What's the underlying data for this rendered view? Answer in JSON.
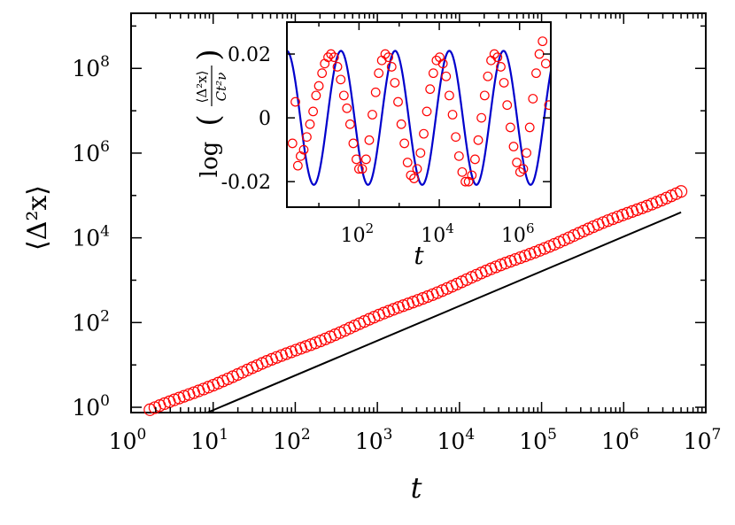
{
  "chart_data": [
    {
      "type": "scatter",
      "xlabel": "t",
      "ylabel": "⟨Δ²x⟩",
      "xscale": "log",
      "yscale": "log",
      "xlim": [
        1,
        10000000
      ],
      "ylim": [
        0.75,
        2000000000
      ],
      "x_ticks": [
        {
          "base": "10",
          "exp": "0"
        },
        {
          "base": "10",
          "exp": "1"
        },
        {
          "base": "10",
          "exp": "2"
        },
        {
          "base": "10",
          "exp": "3"
        },
        {
          "base": "10",
          "exp": "4"
        },
        {
          "base": "10",
          "exp": "5"
        },
        {
          "base": "10",
          "exp": "6"
        },
        {
          "base": "10",
          "exp": "7"
        }
      ],
      "y_ticks": [
        {
          "base": "10",
          "exp": "0"
        },
        {
          "base": "10",
          "exp": "2"
        },
        {
          "base": "10",
          "exp": "4"
        },
        {
          "base": "10",
          "exp": "6"
        },
        {
          "base": "10",
          "exp": "8"
        }
      ],
      "series": [
        {
          "kind": "markers",
          "color": "#ff0000",
          "marker": "open-circle",
          "points": {
            "x_start": 1.7,
            "x_end": 5000000,
            "count": 110,
            "fit_C": 0.55,
            "fit_exponent": 0.8,
            "oscillation_amplitude_log10": 0.02,
            "oscillation_period_log10": 1.35
          }
        },
        {
          "kind": "line",
          "color": "#000000",
          "points": [
            [
              8.5,
              0.75
            ],
            [
              5000000,
              40000
            ]
          ]
        }
      ]
    },
    {
      "type": "line",
      "inset": true,
      "xlabel": "t",
      "ylabel_prefix": "log",
      "ylabel_num": "⟨Δ²x⟩",
      "ylabel_den": "Ct²ν",
      "xscale": "log",
      "xlim": [
        1.6,
        6000000
      ],
      "ylim": [
        -0.028,
        0.03
      ],
      "x_ticks": [
        {
          "base": "10",
          "exp": "2",
          "value": 100
        },
        {
          "base": "10",
          "exp": "4",
          "value": 10000
        },
        {
          "base": "10",
          "exp": "6",
          "value": 1000000
        }
      ],
      "y_ticks": [
        {
          "label": "0.02",
          "value": 0.02
        },
        {
          "label": "0",
          "value": 0
        },
        {
          "label": "-0.02",
          "value": -0.02
        }
      ],
      "series": [
        {
          "kind": "line",
          "color": "#0000cc",
          "amplitude": 0.021,
          "period_log10": 1.35,
          "phase_log10": 1.55
        },
        {
          "kind": "markers",
          "color": "#ff0000",
          "marker": "open-circle",
          "points": [
            [
              2.2,
              -0.008
            ],
            [
              2.6,
              0.005
            ],
            [
              3.0,
              -0.015
            ],
            [
              3.5,
              -0.012
            ],
            [
              4.2,
              -0.01
            ],
            [
              5.0,
              -0.006
            ],
            [
              6.0,
              -0.002
            ],
            [
              7.2,
              0.002
            ],
            [
              8.5,
              0.007
            ],
            [
              10,
              0.01
            ],
            [
              12,
              0.014
            ],
            [
              14,
              0.017
            ],
            [
              17,
              0.019
            ],
            [
              20,
              0.02
            ],
            [
              24,
              0.019
            ],
            [
              29,
              0.016
            ],
            [
              35,
              0.012
            ],
            [
              42,
              0.007
            ],
            [
              50,
              0.003
            ],
            [
              60,
              -0.002
            ],
            [
              72,
              -0.008
            ],
            [
              86,
              -0.013
            ],
            [
              100,
              -0.016
            ],
            [
              120,
              -0.016
            ],
            [
              150,
              -0.013
            ],
            [
              180,
              -0.007
            ],
            [
              215,
              0.001
            ],
            [
              260,
              0.008
            ],
            [
              310,
              0.014
            ],
            [
              370,
              0.018
            ],
            [
              450,
              0.02
            ],
            [
              540,
              0.019
            ],
            [
              650,
              0.016
            ],
            [
              780,
              0.011
            ],
            [
              940,
              0.005
            ],
            [
              1130,
              -0.002
            ],
            [
              1350,
              -0.008
            ],
            [
              1620,
              -0.014
            ],
            [
              1950,
              -0.018
            ],
            [
              2350,
              -0.019
            ],
            [
              2800,
              -0.016
            ],
            [
              3400,
              -0.011
            ],
            [
              4100,
              -0.005
            ],
            [
              4900,
              0.002
            ],
            [
              5900,
              0.009
            ],
            [
              7100,
              0.014
            ],
            [
              8500,
              0.018
            ],
            [
              10200,
              0.019
            ],
            [
              12300,
              0.017
            ],
            [
              14800,
              0.013
            ],
            [
              17800,
              0.007
            ],
            [
              21400,
              0.001
            ],
            [
              25700,
              -0.006
            ],
            [
              31000,
              -0.012
            ],
            [
              37200,
              -0.017
            ],
            [
              44700,
              -0.02
            ],
            [
              53700,
              -0.02
            ],
            [
              64600,
              -0.018
            ],
            [
              77700,
              -0.013
            ],
            [
              93400,
              -0.007
            ],
            [
              112000,
              0.0
            ],
            [
              135000,
              0.007
            ],
            [
              162000,
              0.013
            ],
            [
              195000,
              0.018
            ],
            [
              235000,
              0.02
            ],
            [
              282000,
              0.019
            ],
            [
              340000,
              0.016
            ],
            [
              408000,
              0.011
            ],
            [
              491000,
              0.004
            ],
            [
              590000,
              -0.003
            ],
            [
              710000,
              -0.009
            ],
            [
              853000,
              -0.014
            ],
            [
              1030000,
              -0.017
            ],
            [
              1240000,
              -0.016
            ],
            [
              1490000,
              -0.011
            ],
            [
              1790000,
              -0.003
            ],
            [
              2150000,
              0.006
            ],
            [
              2590000,
              0.014
            ],
            [
              3110000,
              0.02
            ],
            [
              3740000,
              0.024
            ],
            [
              4500000,
              0.017
            ],
            [
              5400000,
              0.004
            ]
          ]
        }
      ]
    }
  ]
}
